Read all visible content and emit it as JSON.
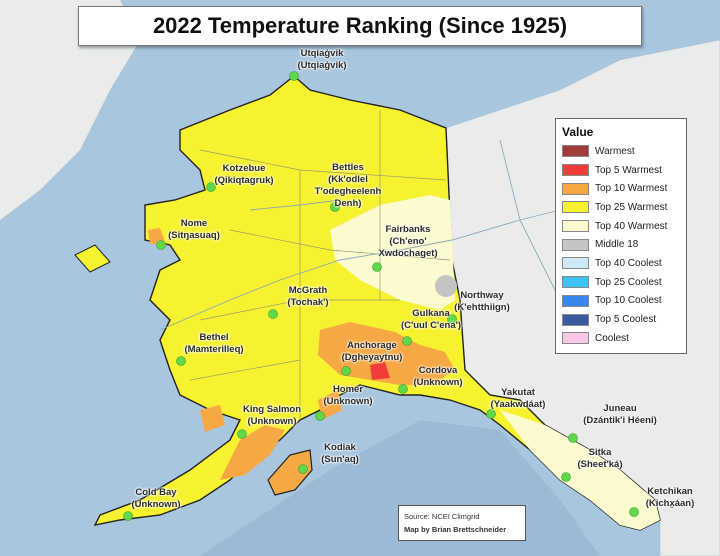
{
  "title": "2022 Temperature Ranking (Since 1925)",
  "legend": {
    "title": "Value",
    "items": [
      {
        "label": "Warmest",
        "color": "#a33a3a"
      },
      {
        "label": "Top 5 Warmest",
        "color": "#f23c3c"
      },
      {
        "label": "Top 10 Warmest",
        "color": "#f5a844"
      },
      {
        "label": "Top 25 Warmest",
        "color": "#f7f230"
      },
      {
        "label": "Top 40 Warmest",
        "color": "#fbfbcf"
      },
      {
        "label": "Middle 18",
        "color": "#c4c4c4"
      },
      {
        "label": "Top 40 Coolest",
        "color": "#cde8f7"
      },
      {
        "label": "Top 25 Coolest",
        "color": "#3fc3f2"
      },
      {
        "label": "Top 10 Coolest",
        "color": "#3a86ea"
      },
      {
        "label": "Top 5 Coolest",
        "color": "#3a5a9e"
      },
      {
        "label": "Coolest",
        "color": "#f8c8e8"
      }
    ]
  },
  "cities": [
    {
      "name": "Utqiaġvik",
      "native": "(Utqiaġvik)"
    },
    {
      "name": "Kotzebue",
      "native": "(Qikiqtagruk)"
    },
    {
      "name": "Bettles",
      "native": "(Kk'odlel\nT'odegheelenh\nDenh)"
    },
    {
      "name": "Nome",
      "native": "(Sitŋasuaq)"
    },
    {
      "name": "Fairbanks",
      "native": "(Ch'eno'\nXwdochaget)"
    },
    {
      "name": "McGrath",
      "native": "(Tochak')"
    },
    {
      "name": "Northway",
      "native": "(K'ehtthiign)"
    },
    {
      "name": "Gulkana",
      "native": "(C'uul C'ena')"
    },
    {
      "name": "Bethel",
      "native": "(Mamterilleq)"
    },
    {
      "name": "Anchorage",
      "native": "(Dgheyaytnu)"
    },
    {
      "name": "Cordova",
      "native": "(Unknown)"
    },
    {
      "name": "Homer",
      "native": "(Unknown)"
    },
    {
      "name": "King Salmon",
      "native": "(Unknown)"
    },
    {
      "name": "Yakutat",
      "native": "(Yaakwdáat)"
    },
    {
      "name": "Juneau",
      "native": "(Dzántik'i Héeni)"
    },
    {
      "name": "Sitka",
      "native": "(Sheet'ká)"
    },
    {
      "name": "Kodiak",
      "native": "(Sun'aq)"
    },
    {
      "name": "Cold Bay",
      "native": "(Unknown)"
    },
    {
      "name": "Ketchikan",
      "native": "(Kichx̱áan)"
    }
  ],
  "colors": {
    "ocean": "#a9c6df",
    "canada_land": "#e9ecea",
    "city_marker": "#5fd84a"
  },
  "source": {
    "text": "Source: NCEI Climgrid",
    "author": "Map by Brian Brettschneider"
  }
}
